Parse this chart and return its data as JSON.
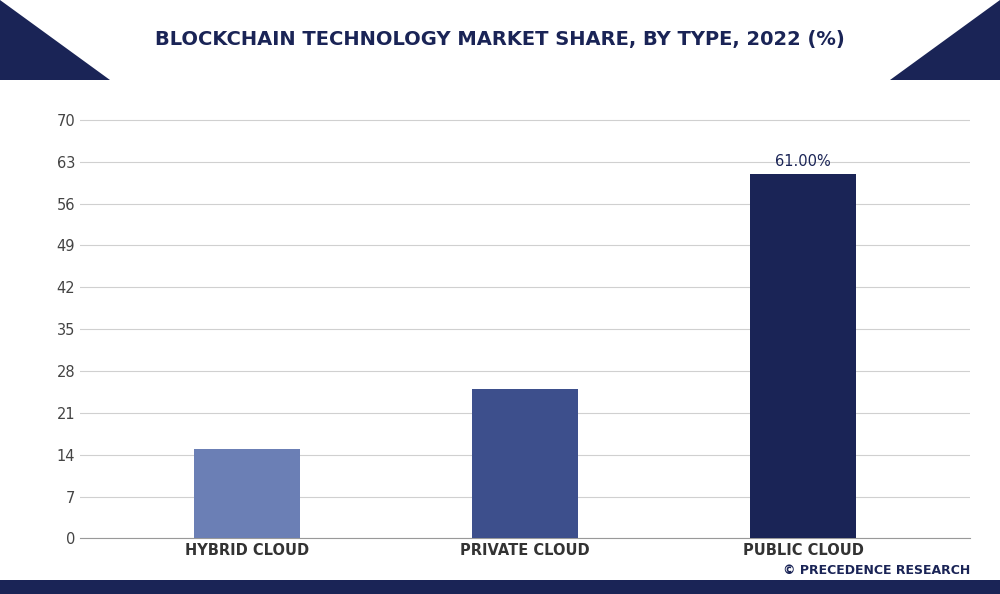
{
  "categories": [
    "HYBRID CLOUD",
    "PRIVATE CLOUD",
    "PUBLIC CLOUD"
  ],
  "values": [
    15.0,
    25.0,
    61.0
  ],
  "bar_colors": [
    "#6b7fb5",
    "#3d4f8c",
    "#1a2456"
  ],
  "title": "BLOCKCHAIN TECHNOLOGY MARKET SHARE, BY TYPE, 2022 (%)",
  "yticks": [
    0,
    7,
    14,
    21,
    28,
    35,
    42,
    49,
    56,
    63,
    70
  ],
  "ylim": [
    0,
    75
  ],
  "annotation_label": "61.00%",
  "annotation_bar_index": 2,
  "background_color": "#ffffff",
  "plot_bg_color": "#ffffff",
  "grid_color": "#d0d0d0",
  "title_bg_color": "#ffffff",
  "title_color": "#1a2456",
  "corner_color": "#1a2456",
  "border_color": "#1a2456",
  "watermark": "© PRECEDENCE RESEARCH",
  "title_fontsize": 14,
  "tick_fontsize": 10.5,
  "annotation_fontsize": 10.5,
  "watermark_fontsize": 9,
  "bar_width": 0.38
}
